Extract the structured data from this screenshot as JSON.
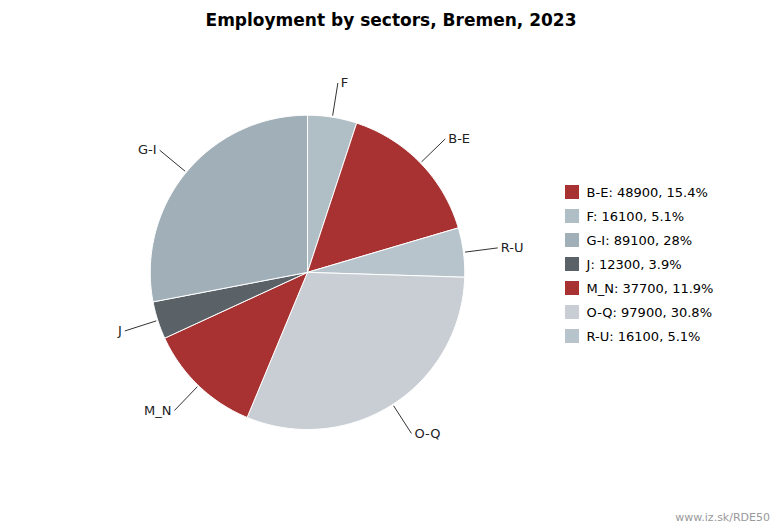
{
  "chart_data": {
    "type": "pie",
    "title": "Employment by sectors, Bremen, 2023",
    "categories": [
      "F",
      "B-E",
      "R-U",
      "O-Q",
      "M_N",
      "J",
      "G-I"
    ],
    "values": [
      16100,
      48900,
      16100,
      97900,
      37700,
      12300,
      89100
    ],
    "colors": [
      "#b0bec5",
      "#a83232",
      "#b8c4cb",
      "#c8ced3",
      "#a83232",
      "#5a6268",
      "#a0afb8"
    ],
    "legend": "right",
    "legend_entries": [
      {
        "label": "B-E: 48900, 15.4%",
        "color": "#a83232"
      },
      {
        "label": "F: 16100, 5.1%",
        "color": "#b0bec5"
      },
      {
        "label": "G-I: 89100, 28%",
        "color": "#a0afb8"
      },
      {
        "label": "J: 12300, 3.9%",
        "color": "#5a6268"
      },
      {
        "label": "M_N: 37700, 11.9%",
        "color": "#a83232"
      },
      {
        "label": "O-Q: 97900, 30.8%",
        "color": "#c8ced3"
      },
      {
        "label": "R-U: 16100, 5.1%",
        "color": "#b8c4cb"
      }
    ],
    "annotation": "www.iz.sk/RDE50",
    "tick_labels": false
  }
}
